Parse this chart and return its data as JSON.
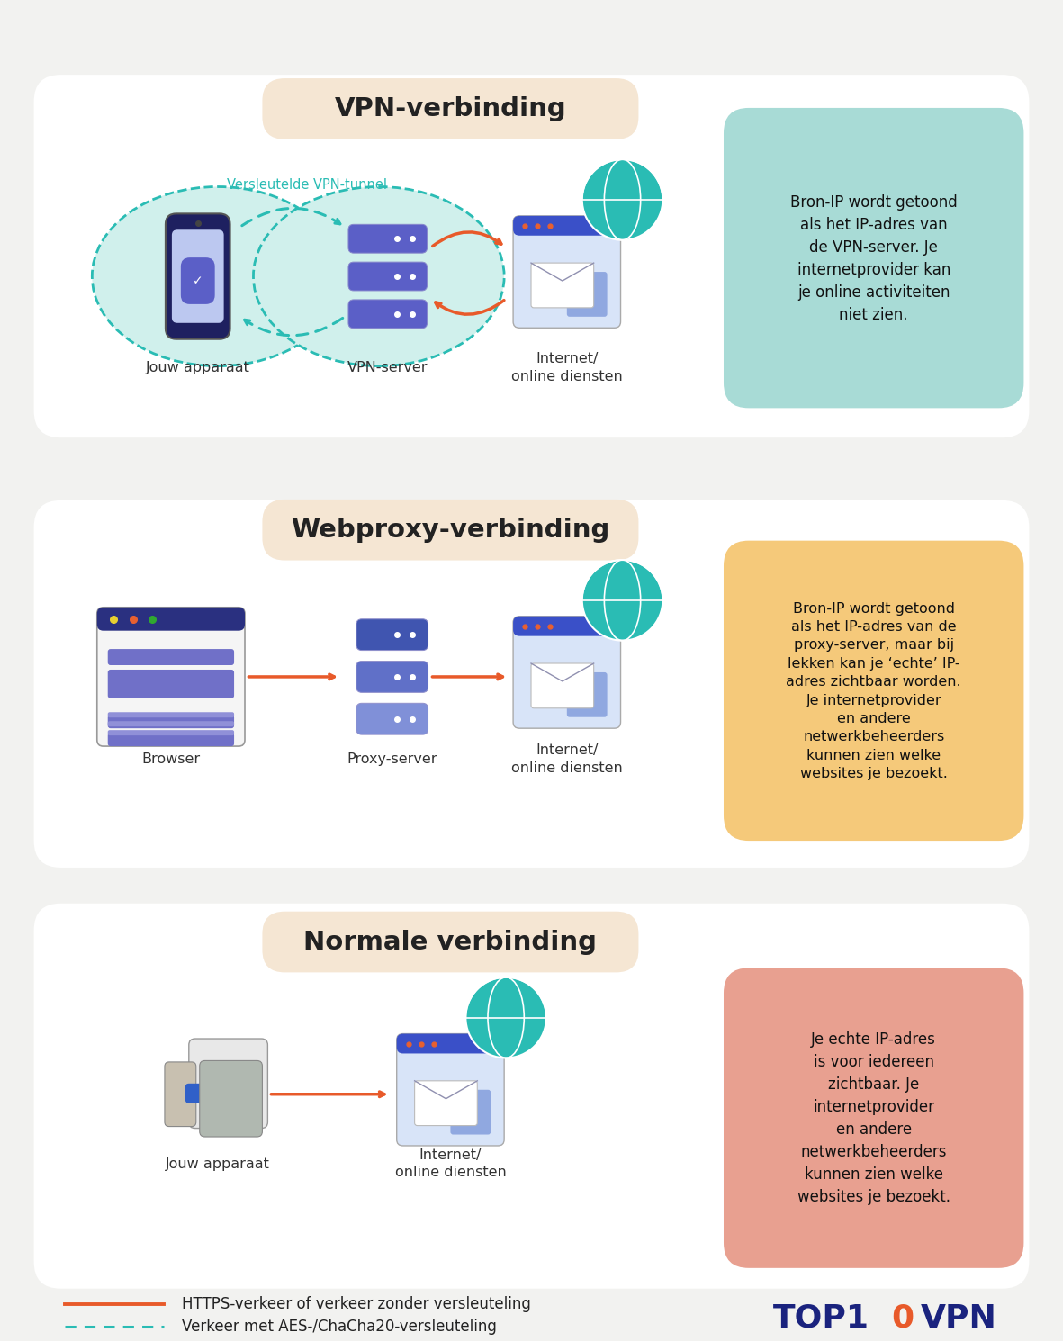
{
  "bg_color": "#f2f2f0",
  "panel_bg": "#ffffff",
  "title_box_color": "#f5e6d3",
  "section_titles": [
    "VPN-verbinding",
    "Webproxy-verbinding",
    "Normale verbinding"
  ],
  "vpn_info_box_color": "#a8dbd6",
  "proxy_info_box_color": "#f5c97a",
  "normal_info_box_color": "#e8a090",
  "teal_color": "#2abcb4",
  "orange_line_color": "#e85a2a",
  "top10vpn_color": "#1a237e",
  "legend_orange": "HTTPS-verkeer of verkeer zonder versleuteling",
  "legend_teal": "Verkeer met AES-/ChaCha20-versleuteling",
  "vpn_info_text": "Bron-IP wordt getoond\nals het IP-adres van\nde VPN-server. Je\ninternetprovider kan\nje online activiteiten\nniet zien.",
  "proxy_info_text": "Bron-IP wordt getoond\nals het IP-adres van de\nproxy-server, maar bij\nlekken kan je ‘echte’ IP-\nadres zichtbaar worden.\nJe internetprovider\nen andere\nnetwerkbeheerders\nkunnen zien welke\nwebsites je bezoekt.",
  "normal_info_text": "Je echte IP-adres\nis voor iedereen\nzichtbaar. Je\ninternetprovider\nen andere\nnetwerkbeheerders\nkunnen zien welke\nwebsites je bezoekt."
}
